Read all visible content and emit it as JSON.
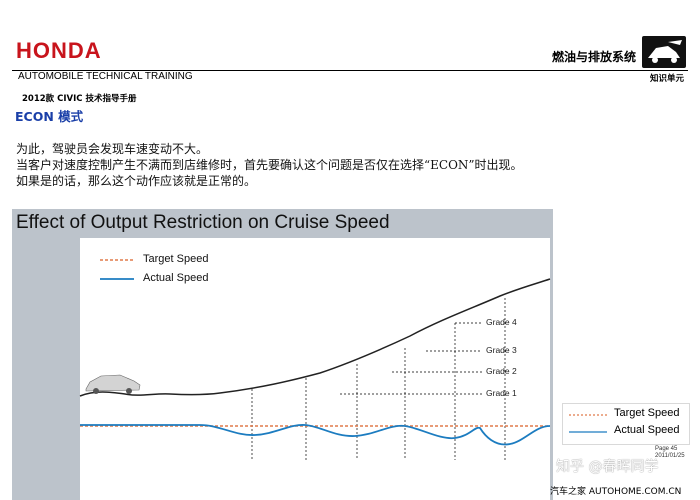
{
  "header": {
    "logo": "HONDA",
    "section_title": "燃油与排放系统",
    "training": "AUTOMOBILE TECHNICAL TRAINING",
    "unit_label": "知识单元",
    "manual": "2012款 CIVIC 技术指导手册"
  },
  "heading": "ECON 模式",
  "paragraph": [
    "为此，驾驶员会发现车速变动不大。",
    "当客户对速度控制产生不满而到店维修时，首先要确认这个问题是否仅在选择“ECON”时出现。",
    "如果是的话，那么这个动作应该就是正常的。"
  ],
  "chart_data": {
    "type": "line",
    "title": "Effect of Output Restriction on Cruise Speed",
    "series": [
      {
        "name": "Target Speed",
        "color": "#e07a4a",
        "style": "dashed"
      },
      {
        "name": "Actual Speed",
        "color": "#1c7cc0",
        "style": "solid"
      }
    ],
    "grade_labels": [
      "Grade 4",
      "Grade 3",
      "Grade 2",
      "Grade 1"
    ],
    "legend_secondary": [
      "Target Speed",
      "Actual Speed"
    ]
  },
  "footer": {
    "page": "Page 45",
    "date": "2011/01/25",
    "watermark": "知乎 @春晖同学",
    "credit": "汽车之家 AUTOHOME.COM.CN"
  }
}
